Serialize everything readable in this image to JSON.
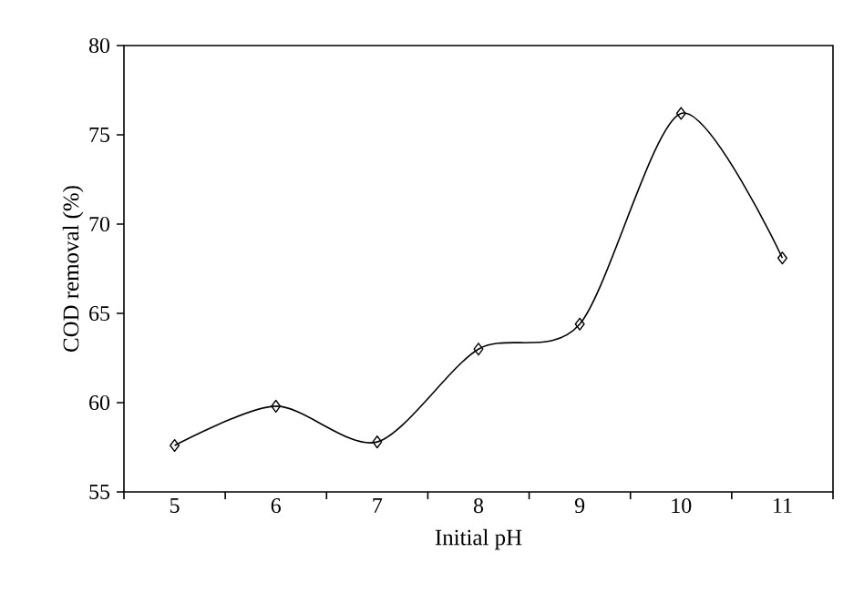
{
  "chart_data": {
    "type": "line",
    "xlabel": "Initial pH",
    "ylabel": "COD removal (%)",
    "categories": [
      "5",
      "6",
      "7",
      "8",
      "9",
      "10",
      "11"
    ],
    "series": [
      {
        "color": "#000000",
        "values": [
          57.6,
          59.8,
          57.8,
          63.0,
          64.4,
          76.2,
          68.1
        ]
      }
    ],
    "ylim": [
      55,
      80
    ],
    "yticks": [
      55,
      60,
      65,
      70,
      75,
      80
    ],
    "marker": "diamond",
    "line_style": "solid"
  }
}
